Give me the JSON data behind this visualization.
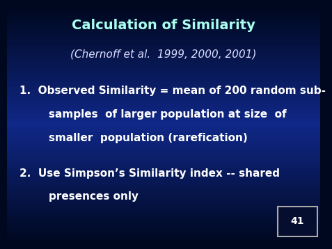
{
  "title": "Calculation of Similarity",
  "subtitle": "(Chernoff et al.  1999, 2000, 2001)",
  "item1_line1": "1.  Observed Similarity = mean of 200 random sub-",
  "item1_line2": "        samples  of larger population at size  of",
  "item1_line3": "        smaller  population (rarefication)",
  "item2_line1": "2.  Use Simpson’s Similarity index -- shared",
  "item2_line2": "        presences only",
  "page_number": "41",
  "title_color": "#aaffee",
  "subtitle_color": "#ddddff",
  "body_color": "#ffffff",
  "page_num_color": "#ffffff",
  "bg_top_color": "#000820",
  "bg_mid_color": "#0a2888",
  "bg_bot_color": "#000820",
  "title_fontsize": 14,
  "subtitle_fontsize": 11,
  "body_fontsize": 11,
  "page_num_fontsize": 10
}
